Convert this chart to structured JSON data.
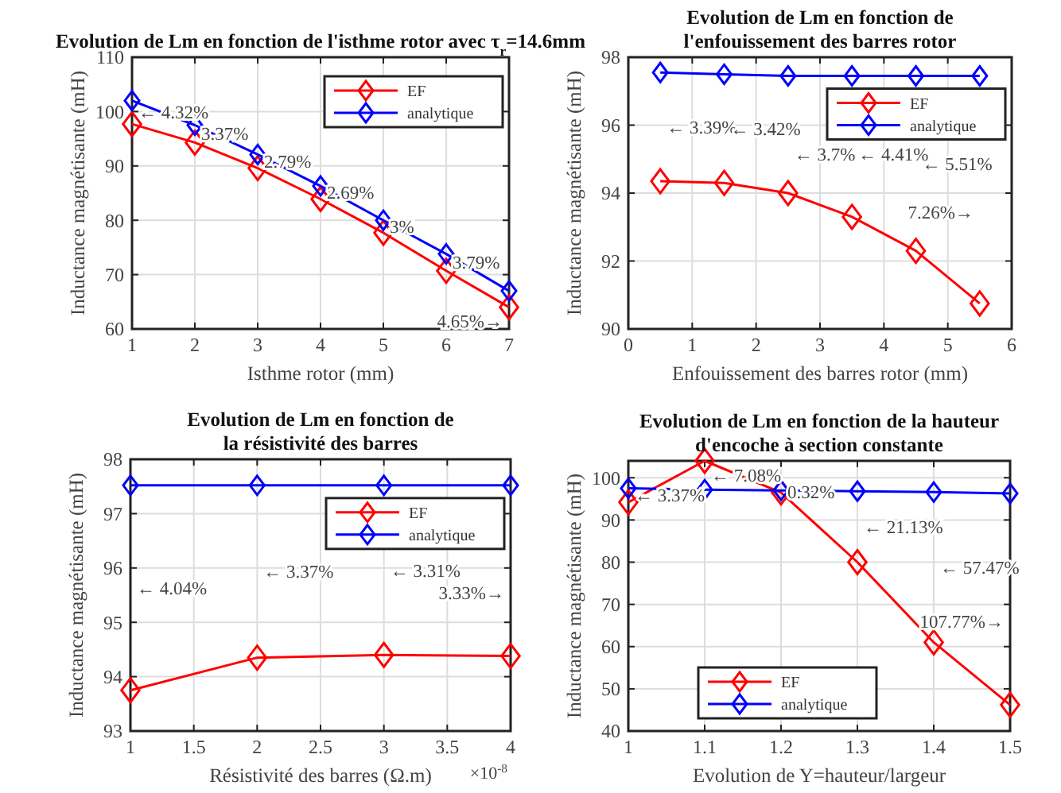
{
  "chart_data": [
    {
      "type": "line",
      "title": "Evolution de Lm en fonction de l'isthme rotor avec τ$_{r}$=14.6mm",
      "xlabel": "Isthme rotor (mm)",
      "ylabel": "Inductance magnétisante (mH)",
      "x": [
        1,
        2,
        3,
        4,
        5,
        6,
        7
      ],
      "xlim": [
        1,
        7
      ],
      "xticks": [
        1,
        2,
        3,
        4,
        5,
        6,
        7
      ],
      "ylim": [
        60,
        110
      ],
      "yticks": [
        60,
        70,
        80,
        90,
        100,
        110
      ],
      "grid": true,
      "legend": "top right",
      "marker": "diamond",
      "line_style": "solid",
      "series": [
        {
          "name": "EF",
          "color": "#ff0000",
          "values": [
            97.7,
            94.3,
            89.6,
            83.9,
            77.7,
            70.7,
            64.0
          ]
        },
        {
          "name": "analytique",
          "color": "#0000ff",
          "values": [
            102,
            97.5,
            92.1,
            86.3,
            80.0,
            73.8,
            67.0
          ]
        }
      ],
      "annotations": [
        "← 4.32%",
        "3.37%",
        "2.79%",
        "2.69%",
        "3%",
        "3.79%",
        "4.65%→"
      ]
    },
    {
      "type": "line",
      "title": "Evolution de Lm en fonction de\nl'enfouissement des barres rotor",
      "xlabel": "Enfouissement des barres rotor (mm)",
      "ylabel": "Inductance magnétisante (mH)",
      "x": [
        0.5,
        1.5,
        2.5,
        3.5,
        4.5,
        5.5
      ],
      "xlim": [
        0,
        6
      ],
      "xticks": [
        0,
        1,
        2,
        3,
        4,
        5,
        6
      ],
      "ylim": [
        90,
        98
      ],
      "yticks": [
        90,
        92,
        94,
        96,
        98
      ],
      "grid": true,
      "legend": "top right",
      "marker": "diamond",
      "line_style": "solid",
      "series": [
        {
          "name": "EF",
          "color": "#ff0000",
          "values": [
            94.35,
            94.3,
            94.0,
            93.3,
            92.3,
            90.75
          ]
        },
        {
          "name": "analytique",
          "color": "#0000ff",
          "values": [
            97.55,
            97.5,
            97.45,
            97.45,
            97.45,
            97.45
          ]
        }
      ],
      "annotations": [
        "← 3.39%",
        "← 3.42%",
        "← 3.7%",
        "← 4.41%",
        "← 5.51%",
        "7.26%→"
      ]
    },
    {
      "type": "line",
      "title": "Evolution de Lm en fonction de\nla résistivité des barres",
      "xlabel": "Résistivité des barres (Ω.m)",
      "ylabel": "Inductance magnétisante (mH)",
      "x": [
        1,
        2,
        3,
        4
      ],
      "xlim": [
        1,
        4
      ],
      "xticks": [
        1,
        1.5,
        2,
        2.5,
        3,
        3.5,
        4
      ],
      "ylim": [
        93,
        98
      ],
      "yticks": [
        93,
        94,
        95,
        96,
        97,
        98
      ],
      "grid": true,
      "legend": "top right",
      "marker": "diamond",
      "line_style": "solid",
      "series": [
        {
          "name": "EF",
          "color": "#ff0000",
          "values": [
            93.75,
            94.35,
            94.4,
            94.38
          ]
        },
        {
          "name": "analytique",
          "color": "#0000ff",
          "values": [
            97.52,
            97.52,
            97.52,
            97.52
          ]
        }
      ],
      "annotations": [
        "← 4.04%",
        "← 3.37%",
        "← 3.31%",
        "3.33%→",
        "×10$^{-8}$"
      ]
    },
    {
      "type": "line",
      "title": "Evolution de Lm en fonction de la hauteur\nd'encoche à section constante",
      "xlabel": "Evolution de Y=hauteur/largeur",
      "ylabel": "Inductance magnétisante (mH)",
      "x": [
        1,
        1.1,
        1.2,
        1.3,
        1.4,
        1.5
      ],
      "xlim": [
        1,
        1.5
      ],
      "xticks": [
        1,
        1.1,
        1.2,
        1.3,
        1.4,
        1.5
      ],
      "ylim": [
        40,
        104
      ],
      "yticks": [
        40,
        50,
        60,
        70,
        80,
        90,
        100
      ],
      "grid": true,
      "legend": "bottom",
      "marker": "diamond",
      "line_style": "solid",
      "series": [
        {
          "name": "EF",
          "color": "#ff0000",
          "values": [
            94.2,
            104,
            96.5,
            80,
            61,
            46.2
          ]
        },
        {
          "name": "analytique",
          "color": "#0000ff",
          "values": [
            97.5,
            97.2,
            97,
            96.8,
            96.6,
            96.3
          ]
        }
      ],
      "annotations": [
        "← 3.37%",
        "← 7.08%",
        "0.32%",
        "← 21.13%",
        "← 57.47%",
        "107.77%→"
      ]
    }
  ]
}
